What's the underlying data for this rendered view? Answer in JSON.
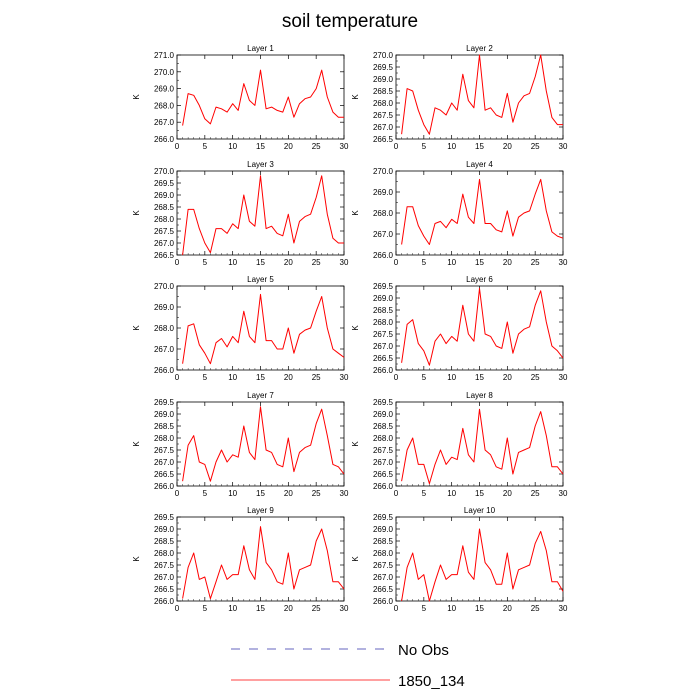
{
  "title": "soil temperature",
  "legend": [
    {
      "name": "No Obs",
      "color": "#3333aa",
      "style": "dashed"
    },
    {
      "name": "1850_134",
      "color": "#ff0000",
      "style": "solid"
    }
  ],
  "chart_data": [
    {
      "type": "line",
      "title": "Layer 1",
      "xlabel": "",
      "ylabel": "K",
      "xlim": [
        0,
        30
      ],
      "ylim": [
        266.0,
        271.0
      ],
      "xticks": [
        0,
        5,
        10,
        15,
        20,
        25,
        30
      ],
      "yticks": [
        266.0,
        267.0,
        268.0,
        269.0,
        270.0,
        271.0
      ],
      "color": "#ff0000",
      "x": [
        1,
        2,
        3,
        4,
        5,
        6,
        7,
        8,
        9,
        10,
        11,
        12,
        13,
        14,
        15,
        16,
        17,
        18,
        19,
        20,
        21,
        22,
        23,
        24,
        25,
        26,
        27,
        28,
        29,
        30
      ],
      "y": [
        266.8,
        268.7,
        268.6,
        268.0,
        267.2,
        266.9,
        267.9,
        267.8,
        267.6,
        268.1,
        267.7,
        269.3,
        268.3,
        268.0,
        270.1,
        267.8,
        267.9,
        267.7,
        267.6,
        268.5,
        267.3,
        268.1,
        268.4,
        268.5,
        269.0,
        270.1,
        268.5,
        267.6,
        267.3,
        267.3
      ]
    },
    {
      "type": "line",
      "title": "Layer 2",
      "xlabel": "",
      "ylabel": "K",
      "xlim": [
        0,
        30
      ],
      "ylim": [
        266.5,
        270.0
      ],
      "xticks": [
        0,
        5,
        10,
        15,
        20,
        25,
        30
      ],
      "yticks": [
        266.5,
        267.0,
        267.5,
        268.0,
        268.5,
        269.0,
        269.5,
        270.0
      ],
      "color": "#ff0000",
      "x": [
        1,
        2,
        3,
        4,
        5,
        6,
        7,
        8,
        9,
        10,
        11,
        12,
        13,
        14,
        15,
        16,
        17,
        18,
        19,
        20,
        21,
        22,
        23,
        24,
        25,
        26,
        27,
        28,
        29,
        30
      ],
      "y": [
        266.7,
        268.6,
        268.5,
        267.7,
        267.1,
        266.7,
        267.8,
        267.7,
        267.5,
        268.0,
        267.7,
        269.2,
        268.1,
        267.8,
        270.0,
        267.7,
        267.8,
        267.5,
        267.4,
        268.4,
        267.2,
        268.0,
        268.3,
        268.4,
        269.1,
        270.0,
        268.5,
        267.4,
        267.1,
        267.1
      ]
    },
    {
      "type": "line",
      "title": "Layer 3",
      "xlabel": "",
      "ylabel": "K",
      "xlim": [
        0,
        30
      ],
      "ylim": [
        266.5,
        270.0
      ],
      "xticks": [
        0,
        5,
        10,
        15,
        20,
        25,
        30
      ],
      "yticks": [
        266.5,
        267.0,
        267.5,
        268.0,
        268.5,
        269.0,
        269.5,
        270.0
      ],
      "color": "#ff0000",
      "x": [
        1,
        2,
        3,
        4,
        5,
        6,
        7,
        8,
        9,
        10,
        11,
        12,
        13,
        14,
        15,
        16,
        17,
        18,
        19,
        20,
        21,
        22,
        23,
        24,
        25,
        26,
        27,
        28,
        29,
        30
      ],
      "y": [
        266.5,
        268.4,
        268.4,
        267.6,
        267.0,
        266.6,
        267.6,
        267.6,
        267.4,
        267.8,
        267.6,
        269.0,
        267.9,
        267.7,
        269.8,
        267.6,
        267.7,
        267.4,
        267.3,
        268.2,
        267.0,
        267.9,
        268.1,
        268.2,
        268.9,
        269.8,
        268.2,
        267.2,
        267.0,
        267.0
      ]
    },
    {
      "type": "line",
      "title": "Layer 4",
      "xlabel": "",
      "ylabel": "K",
      "xlim": [
        0,
        30
      ],
      "ylim": [
        266.0,
        270.0
      ],
      "xticks": [
        0,
        5,
        10,
        15,
        20,
        25,
        30
      ],
      "yticks": [
        266.0,
        267.0,
        268.0,
        269.0,
        270.0
      ],
      "color": "#ff0000",
      "x": [
        1,
        2,
        3,
        4,
        5,
        6,
        7,
        8,
        9,
        10,
        11,
        12,
        13,
        14,
        15,
        16,
        17,
        18,
        19,
        20,
        21,
        22,
        23,
        24,
        25,
        26,
        27,
        28,
        29,
        30
      ],
      "y": [
        266.5,
        268.3,
        268.3,
        267.4,
        266.9,
        266.5,
        267.5,
        267.6,
        267.3,
        267.7,
        267.5,
        268.9,
        267.8,
        267.5,
        269.6,
        267.5,
        267.5,
        267.2,
        267.1,
        268.1,
        266.9,
        267.8,
        268.0,
        268.1,
        268.9,
        269.6,
        268.1,
        267.1,
        266.9,
        266.8
      ]
    },
    {
      "type": "line",
      "title": "Layer 5",
      "xlabel": "",
      "ylabel": "K",
      "xlim": [
        0,
        30
      ],
      "ylim": [
        266.0,
        270.0
      ],
      "xticks": [
        0,
        5,
        10,
        15,
        20,
        25,
        30
      ],
      "yticks": [
        266.0,
        267.0,
        268.0,
        269.0,
        270.0
      ],
      "color": "#ff0000",
      "x": [
        1,
        2,
        3,
        4,
        5,
        6,
        7,
        8,
        9,
        10,
        11,
        12,
        13,
        14,
        15,
        16,
        17,
        18,
        19,
        20,
        21,
        22,
        23,
        24,
        25,
        26,
        27,
        28,
        29,
        30
      ],
      "y": [
        266.3,
        268.1,
        268.2,
        267.2,
        266.8,
        266.3,
        267.3,
        267.5,
        267.1,
        267.6,
        267.3,
        268.8,
        267.6,
        267.3,
        269.6,
        267.4,
        267.4,
        267.0,
        267.0,
        268.0,
        266.8,
        267.7,
        267.9,
        268.0,
        268.8,
        269.5,
        268.0,
        267.0,
        266.8,
        266.6
      ]
    },
    {
      "type": "line",
      "title": "Layer 6",
      "xlabel": "",
      "ylabel": "K",
      "xlim": [
        0,
        30
      ],
      "ylim": [
        266.0,
        269.5
      ],
      "xticks": [
        0,
        5,
        10,
        15,
        20,
        25,
        30
      ],
      "yticks": [
        266.0,
        266.5,
        267.0,
        267.5,
        268.0,
        268.5,
        269.0,
        269.5
      ],
      "color": "#ff0000",
      "x": [
        1,
        2,
        3,
        4,
        5,
        6,
        7,
        8,
        9,
        10,
        11,
        12,
        13,
        14,
        15,
        16,
        17,
        18,
        19,
        20,
        21,
        22,
        23,
        24,
        25,
        26,
        27,
        28,
        29,
        30
      ],
      "y": [
        266.3,
        267.9,
        268.1,
        267.1,
        266.8,
        266.2,
        267.2,
        267.5,
        267.1,
        267.4,
        267.2,
        268.7,
        267.5,
        267.2,
        269.4,
        267.5,
        267.4,
        267.0,
        266.9,
        268.0,
        266.7,
        267.5,
        267.7,
        267.8,
        268.7,
        269.3,
        268.0,
        267.0,
        266.8,
        266.5
      ]
    },
    {
      "type": "line",
      "title": "Layer 7",
      "xlabel": "",
      "ylabel": "K",
      "xlim": [
        0,
        30
      ],
      "ylim": [
        266.0,
        269.5
      ],
      "xticks": [
        0,
        5,
        10,
        15,
        20,
        25,
        30
      ],
      "yticks": [
        266.0,
        266.5,
        267.0,
        267.5,
        268.0,
        268.5,
        269.0,
        269.5
      ],
      "color": "#ff0000",
      "x": [
        1,
        2,
        3,
        4,
        5,
        6,
        7,
        8,
        9,
        10,
        11,
        12,
        13,
        14,
        15,
        16,
        17,
        18,
        19,
        20,
        21,
        22,
        23,
        24,
        25,
        26,
        27,
        28,
        29,
        30
      ],
      "y": [
        266.2,
        267.7,
        268.1,
        267.0,
        266.9,
        266.2,
        267.0,
        267.5,
        267.0,
        267.3,
        267.2,
        268.5,
        267.4,
        267.1,
        269.3,
        267.5,
        267.4,
        266.9,
        266.8,
        268.0,
        266.6,
        267.4,
        267.6,
        267.7,
        268.6,
        269.2,
        268.1,
        266.9,
        266.8,
        266.5
      ]
    },
    {
      "type": "line",
      "title": "Layer 8",
      "xlabel": "",
      "ylabel": "K",
      "xlim": [
        0,
        30
      ],
      "ylim": [
        266.0,
        269.5
      ],
      "xticks": [
        0,
        5,
        10,
        15,
        20,
        25,
        30
      ],
      "yticks": [
        266.0,
        266.5,
        267.0,
        267.5,
        268.0,
        268.5,
        269.0,
        269.5
      ],
      "color": "#ff0000",
      "x": [
        1,
        2,
        3,
        4,
        5,
        6,
        7,
        8,
        9,
        10,
        11,
        12,
        13,
        14,
        15,
        16,
        17,
        18,
        19,
        20,
        21,
        22,
        23,
        24,
        25,
        26,
        27,
        28,
        29,
        30
      ],
      "y": [
        266.2,
        267.5,
        268.0,
        266.9,
        266.9,
        266.1,
        266.9,
        267.5,
        266.9,
        267.2,
        267.1,
        268.4,
        267.3,
        267.0,
        269.2,
        267.5,
        267.3,
        266.8,
        266.7,
        268.0,
        266.5,
        267.4,
        267.5,
        267.6,
        268.5,
        269.1,
        268.1,
        266.8,
        266.8,
        266.5
      ]
    },
    {
      "type": "line",
      "title": "Layer 9",
      "xlabel": "",
      "ylabel": "K",
      "xlim": [
        0,
        30
      ],
      "ylim": [
        266.0,
        269.5
      ],
      "xticks": [
        0,
        5,
        10,
        15,
        20,
        25,
        30
      ],
      "yticks": [
        266.0,
        266.5,
        267.0,
        267.5,
        268.0,
        268.5,
        269.0,
        269.5
      ],
      "color": "#ff0000",
      "x": [
        1,
        2,
        3,
        4,
        5,
        6,
        7,
        8,
        9,
        10,
        11,
        12,
        13,
        14,
        15,
        16,
        17,
        18,
        19,
        20,
        21,
        22,
        23,
        24,
        25,
        26,
        27,
        28,
        29,
        30
      ],
      "y": [
        266.1,
        267.4,
        268.0,
        266.9,
        267.0,
        266.1,
        266.8,
        267.5,
        266.9,
        267.1,
        267.1,
        268.3,
        267.3,
        266.9,
        269.1,
        267.6,
        267.3,
        266.8,
        266.7,
        268.0,
        266.5,
        267.3,
        267.4,
        267.5,
        268.5,
        269.0,
        268.1,
        266.8,
        266.8,
        266.5
      ]
    },
    {
      "type": "line",
      "title": "Layer 10",
      "xlabel": "",
      "ylabel": "K",
      "xlim": [
        0,
        30
      ],
      "ylim": [
        266.0,
        269.5
      ],
      "xticks": [
        0,
        5,
        10,
        15,
        20,
        25,
        30
      ],
      "yticks": [
        266.0,
        266.5,
        267.0,
        267.5,
        268.0,
        268.5,
        269.0,
        269.5
      ],
      "color": "#ff0000",
      "x": [
        1,
        2,
        3,
        4,
        5,
        6,
        7,
        8,
        9,
        10,
        11,
        12,
        13,
        14,
        15,
        16,
        17,
        18,
        19,
        20,
        21,
        22,
        23,
        24,
        25,
        26,
        27,
        28,
        29,
        30
      ],
      "y": [
        266.0,
        267.4,
        268.0,
        266.9,
        267.1,
        266.0,
        266.8,
        267.5,
        266.9,
        267.1,
        267.1,
        268.3,
        267.2,
        266.9,
        269.0,
        267.6,
        267.3,
        266.7,
        266.7,
        268.0,
        266.5,
        267.3,
        267.4,
        267.5,
        268.4,
        268.9,
        268.1,
        266.8,
        266.8,
        266.4
      ]
    }
  ]
}
